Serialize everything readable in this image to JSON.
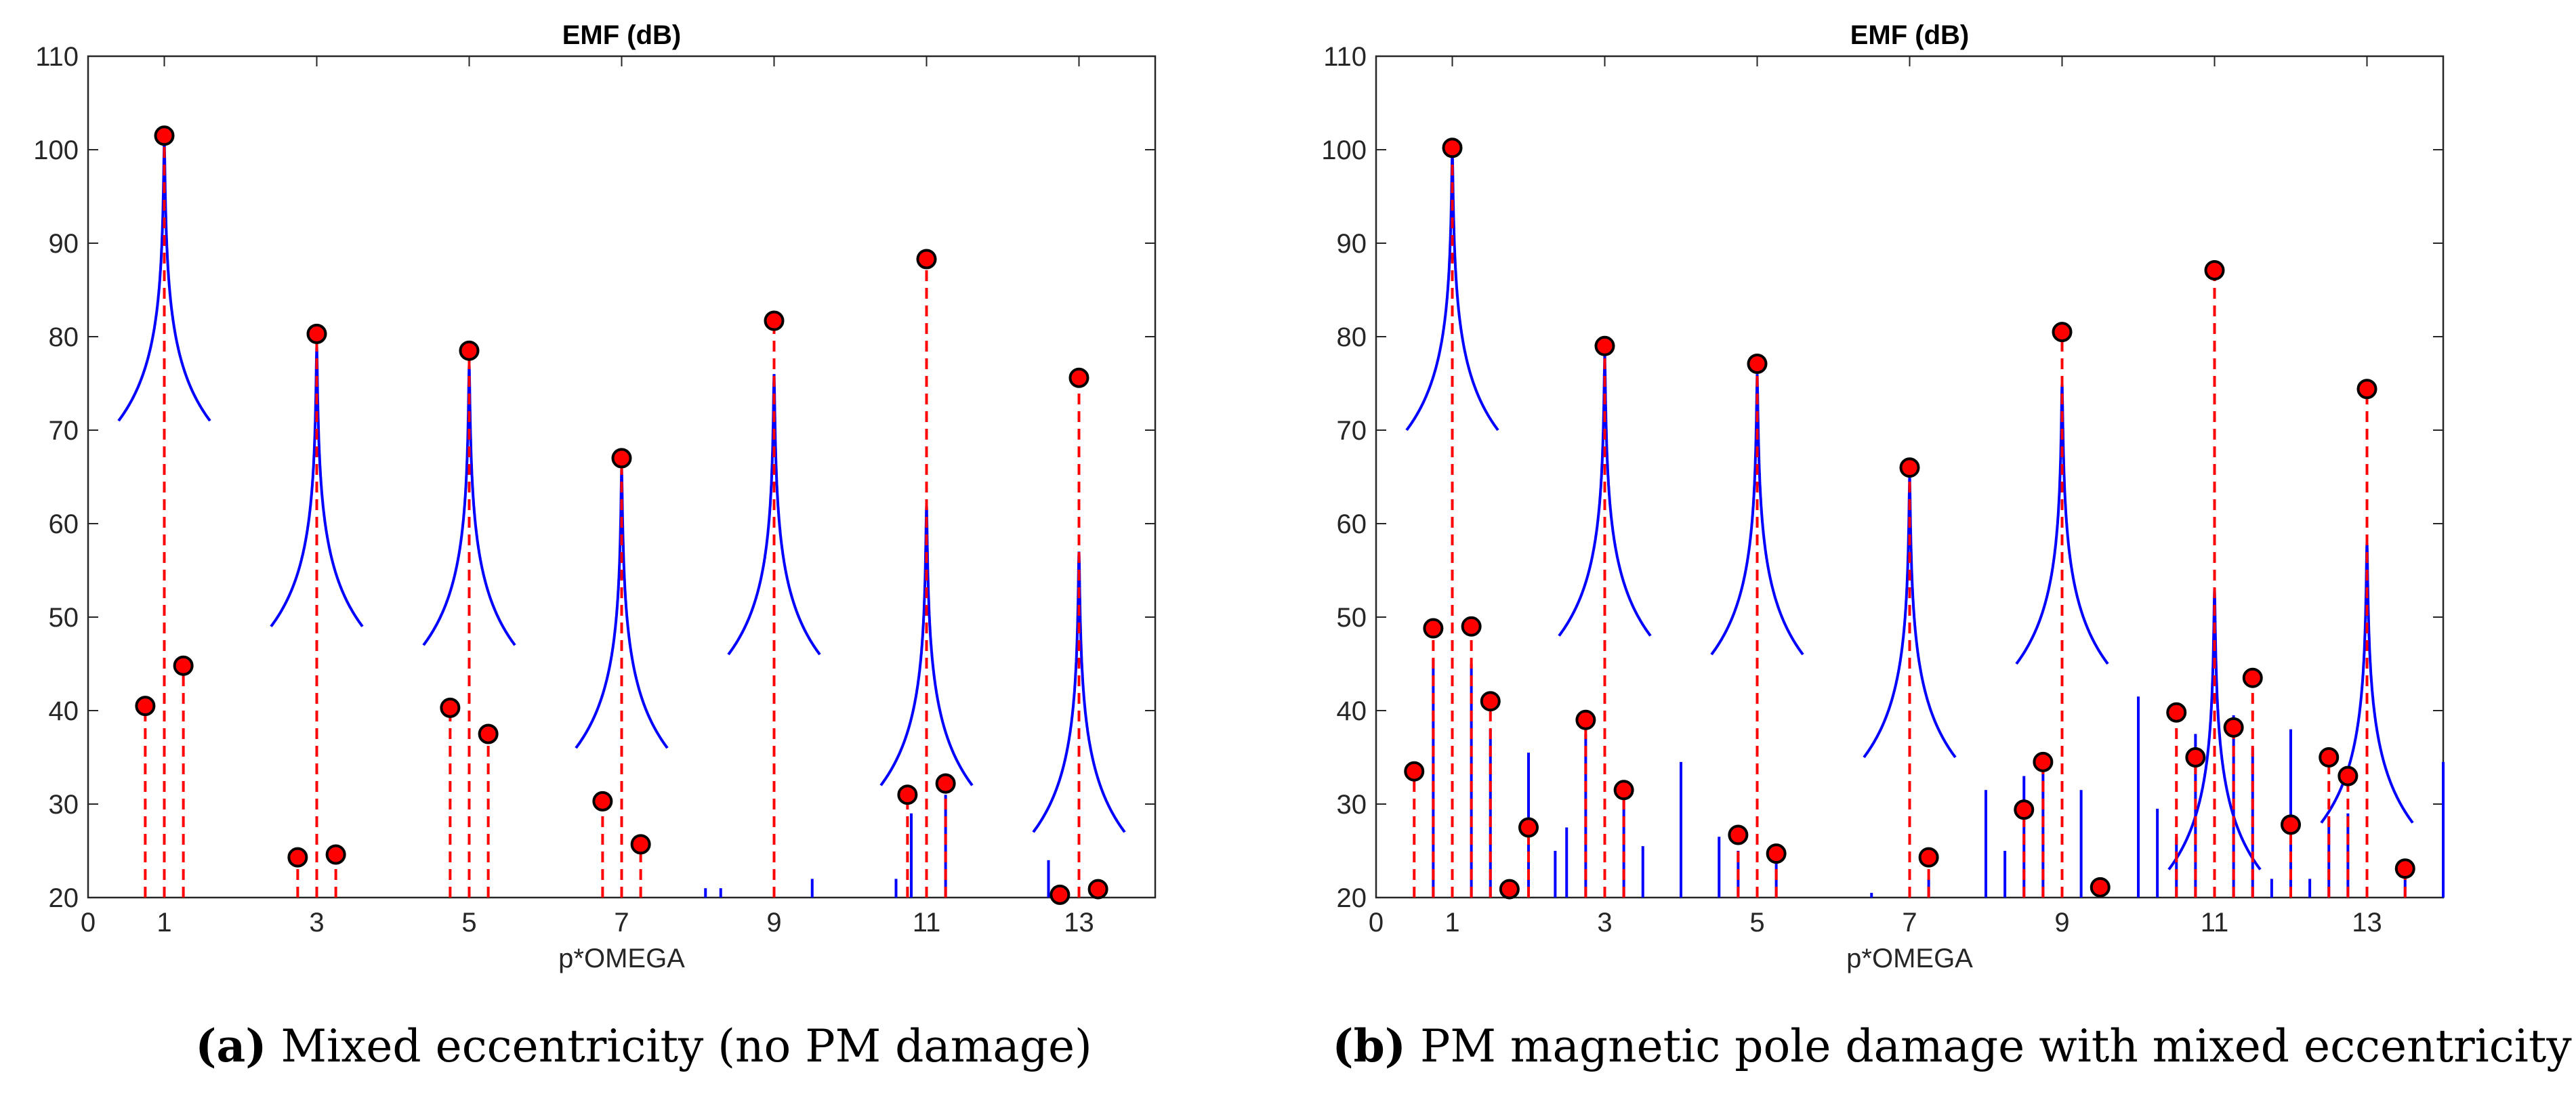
{
  "chart_data": [
    {
      "id": "a",
      "type": "line",
      "title": "EMF (dB)",
      "xlabel": "p*OMEGA",
      "ylabel": "",
      "xlim": [
        0,
        14
      ],
      "ylim": [
        20,
        110
      ],
      "xticks": [
        0,
        1,
        3,
        5,
        7,
        9,
        11,
        13
      ],
      "yticks": [
        20,
        30,
        40,
        50,
        60,
        70,
        80,
        90,
        100,
        110
      ],
      "caption_letter": "(a)",
      "caption_text": " Mixed eccentricity (no PM damage)",
      "peaks": [
        {
          "x": 1,
          "y": 101
        },
        {
          "x": 3,
          "y": 79
        },
        {
          "x": 5,
          "y": 77
        },
        {
          "x": 7,
          "y": 66
        },
        {
          "x": 9,
          "y": 76
        },
        {
          "x": 11,
          "y": 62
        },
        {
          "x": 13,
          "y": 57
        }
      ],
      "extra_lines": [
        {
          "x": 8.1,
          "y": 21
        },
        {
          "x": 8.3,
          "y": 21
        },
        {
          "x": 9.5,
          "y": 22
        },
        {
          "x": 10.6,
          "y": 22
        },
        {
          "x": 10.8,
          "y": 29
        },
        {
          "x": 11.25,
          "y": 31
        },
        {
          "x": 12.6,
          "y": 24
        }
      ],
      "markers": [
        {
          "x": 0.75,
          "y": 40.5
        },
        {
          "x": 1.0,
          "y": 101.5
        },
        {
          "x": 1.25,
          "y": 44.8
        },
        {
          "x": 2.75,
          "y": 24.3
        },
        {
          "x": 3.0,
          "y": 80.3
        },
        {
          "x": 3.25,
          "y": 24.6
        },
        {
          "x": 4.75,
          "y": 40.3
        },
        {
          "x": 5.0,
          "y": 78.5
        },
        {
          "x": 5.25,
          "y": 37.5
        },
        {
          "x": 6.75,
          "y": 30.3
        },
        {
          "x": 7.0,
          "y": 67.0
        },
        {
          "x": 7.25,
          "y": 25.7
        },
        {
          "x": 9.0,
          "y": 81.7
        },
        {
          "x": 10.75,
          "y": 31.0
        },
        {
          "x": 11.0,
          "y": 88.3
        },
        {
          "x": 11.25,
          "y": 32.2
        },
        {
          "x": 12.75,
          "y": 20.3
        },
        {
          "x": 13.0,
          "y": 75.6
        },
        {
          "x": 13.25,
          "y": 20.9
        }
      ]
    },
    {
      "id": "b",
      "type": "line",
      "title": "EMF (dB)",
      "xlabel": "p*OMEGA",
      "ylabel": "",
      "xlim": [
        0,
        14
      ],
      "ylim": [
        20,
        110
      ],
      "xticks": [
        0,
        1,
        3,
        5,
        7,
        9,
        11,
        13
      ],
      "yticks": [
        20,
        30,
        40,
        50,
        60,
        70,
        80,
        90,
        100,
        110
      ],
      "caption_letter": "(b)",
      "caption_text": " PM magnetic pole damage with mixed eccentricity",
      "peaks": [
        {
          "x": 1,
          "y": 100
        },
        {
          "x": 3,
          "y": 78
        },
        {
          "x": 5,
          "y": 76
        },
        {
          "x": 7,
          "y": 65
        },
        {
          "x": 9,
          "y": 75
        },
        {
          "x": 11,
          "y": 53
        },
        {
          "x": 13,
          "y": 58
        }
      ],
      "extra_lines": [
        {
          "x": 0.75,
          "y": 45.5
        },
        {
          "x": 1.25,
          "y": 45
        },
        {
          "x": 1.5,
          "y": 38
        },
        {
          "x": 2.0,
          "y": 35.5
        },
        {
          "x": 2.35,
          "y": 25
        },
        {
          "x": 2.5,
          "y": 27.5
        },
        {
          "x": 2.75,
          "y": 37.5
        },
        {
          "x": 3.25,
          "y": 31
        },
        {
          "x": 3.5,
          "y": 25.5
        },
        {
          "x": 4.0,
          "y": 34.5
        },
        {
          "x": 4.5,
          "y": 26.5
        },
        {
          "x": 4.75,
          "y": 25
        },
        {
          "x": 5.25,
          "y": 24
        },
        {
          "x": 6.5,
          "y": 20.5
        },
        {
          "x": 7.25,
          "y": 22
        },
        {
          "x": 8.0,
          "y": 31.5
        },
        {
          "x": 8.25,
          "y": 25
        },
        {
          "x": 8.5,
          "y": 33
        },
        {
          "x": 8.75,
          "y": 34
        },
        {
          "x": 9.25,
          "y": 31.5
        },
        {
          "x": 10.0,
          "y": 41.5
        },
        {
          "x": 10.25,
          "y": 29.5
        },
        {
          "x": 10.5,
          "y": 26.5
        },
        {
          "x": 10.75,
          "y": 37.5
        },
        {
          "x": 11.25,
          "y": 39.5
        },
        {
          "x": 11.5,
          "y": 36
        },
        {
          "x": 11.75,
          "y": 22
        },
        {
          "x": 12.0,
          "y": 38
        },
        {
          "x": 12.25,
          "y": 22
        },
        {
          "x": 12.5,
          "y": 28.5
        },
        {
          "x": 12.75,
          "y": 29
        },
        {
          "x": 13.5,
          "y": 22
        },
        {
          "x": 14.0,
          "y": 34.5
        }
      ],
      "markers": [
        {
          "x": 0.5,
          "y": 33.5
        },
        {
          "x": 0.75,
          "y": 48.8
        },
        {
          "x": 1.0,
          "y": 100.2
        },
        {
          "x": 1.25,
          "y": 49.0
        },
        {
          "x": 1.5,
          "y": 41.0
        },
        {
          "x": 1.75,
          "y": 20.9
        },
        {
          "x": 2.0,
          "y": 27.5
        },
        {
          "x": 2.75,
          "y": 39.0
        },
        {
          "x": 3.0,
          "y": 79.0
        },
        {
          "x": 3.25,
          "y": 31.5
        },
        {
          "x": 4.75,
          "y": 26.7
        },
        {
          "x": 5.0,
          "y": 77.1
        },
        {
          "x": 5.25,
          "y": 24.7
        },
        {
          "x": 7.0,
          "y": 66.0
        },
        {
          "x": 7.25,
          "y": 24.3
        },
        {
          "x": 8.5,
          "y": 29.4
        },
        {
          "x": 8.75,
          "y": 34.5
        },
        {
          "x": 9.0,
          "y": 80.5
        },
        {
          "x": 9.5,
          "y": 21.1
        },
        {
          "x": 10.5,
          "y": 39.8
        },
        {
          "x": 10.75,
          "y": 35.0
        },
        {
          "x": 11.0,
          "y": 87.1
        },
        {
          "x": 11.25,
          "y": 38.2
        },
        {
          "x": 11.5,
          "y": 43.5
        },
        {
          "x": 12.0,
          "y": 27.8
        },
        {
          "x": 12.5,
          "y": 35.0
        },
        {
          "x": 12.75,
          "y": 33.0
        },
        {
          "x": 13.0,
          "y": 74.4
        },
        {
          "x": 13.5,
          "y": 23.1
        }
      ]
    }
  ],
  "colors": {
    "spectrum": "#0000ff",
    "stem": "#ff0000",
    "marker_fill": "#ff0000",
    "marker_edge": "#000000",
    "axis": "#262626"
  }
}
